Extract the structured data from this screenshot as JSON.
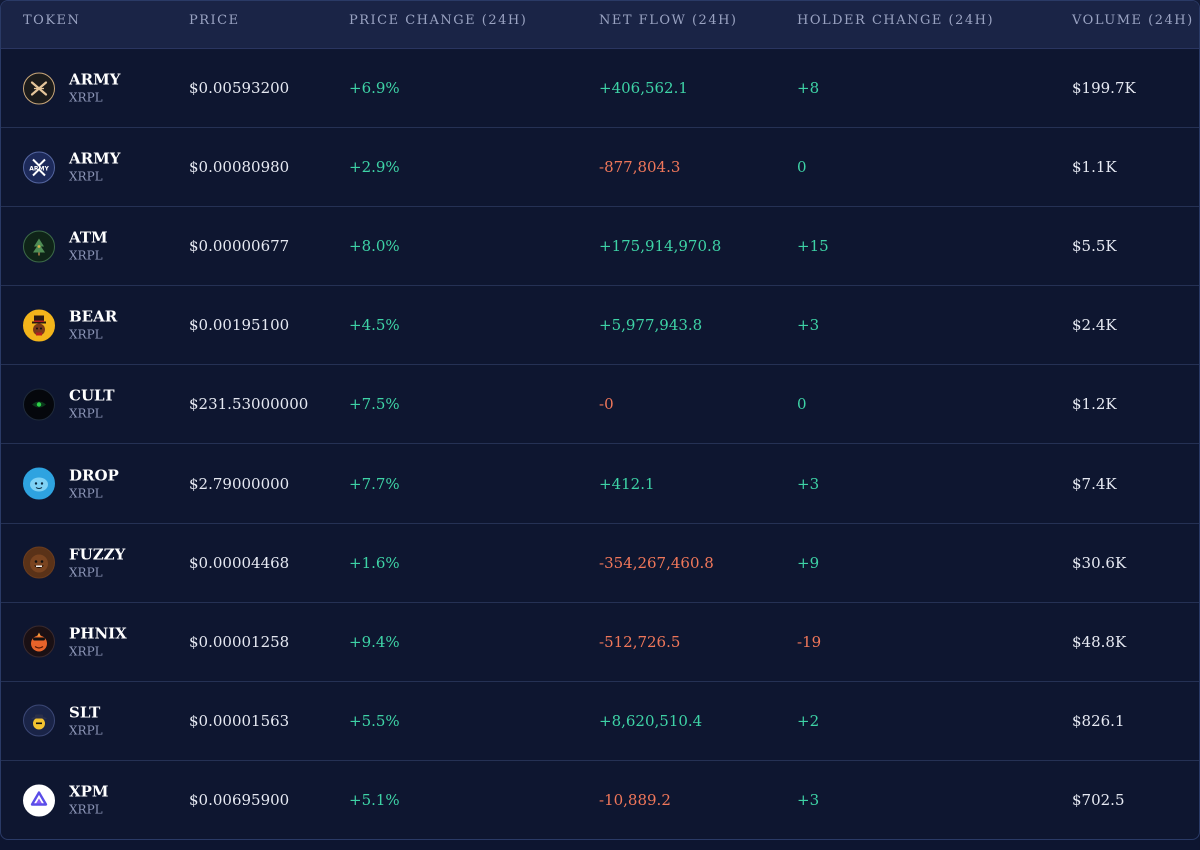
{
  "header": {
    "token": "TOKEN",
    "price": "PRICE",
    "change": "PRICE CHANGE (24H)",
    "flow": "NET FLOW (24H)",
    "holder": "HOLDER CHANGE (24H)",
    "volume": "VOLUME (24H)"
  },
  "colors": {
    "positive": "#3ed3a6",
    "negative": "#f0775a",
    "background": "#0e1630"
  },
  "rows": [
    {
      "symbol": "ARMY",
      "chain": "XRPL",
      "icon": "army-crossed-swords-icon",
      "price": "$0.00593200",
      "change": "+6.9%",
      "flow": "+406,562.1",
      "holder": "+8",
      "volume": "$199.7K"
    },
    {
      "symbol": "ARMY",
      "chain": "XRPL",
      "icon": "army-xrp-icon",
      "price": "$0.00080980",
      "change": "+2.9%",
      "flow": "-877,804.3",
      "holder": "0",
      "volume": "$1.1K"
    },
    {
      "symbol": "ATM",
      "chain": "XRPL",
      "icon": "atm-tree-icon",
      "price": "$0.00000677",
      "change": "+8.0%",
      "flow": "+175,914,970.8",
      "holder": "+15",
      "volume": "$5.5K"
    },
    {
      "symbol": "BEAR",
      "chain": "XRPL",
      "icon": "bear-tophat-icon",
      "price": "$0.00195100",
      "change": "+4.5%",
      "flow": "+5,977,943.8",
      "holder": "+3",
      "volume": "$2.4K"
    },
    {
      "symbol": "CULT",
      "chain": "XRPL",
      "icon": "cult-eye-icon",
      "price": "$231.53000000",
      "change": "+7.5%",
      "flow": "-0",
      "holder": "0",
      "volume": "$1.2K"
    },
    {
      "symbol": "DROP",
      "chain": "XRPL",
      "icon": "drop-blob-icon",
      "price": "$2.79000000",
      "change": "+7.7%",
      "flow": "+412.1",
      "holder": "+3",
      "volume": "$7.4K"
    },
    {
      "symbol": "FUZZY",
      "chain": "XRPL",
      "icon": "fuzzy-bear-icon",
      "price": "$0.00004468",
      "change": "+1.6%",
      "flow": "-354,267,460.8",
      "holder": "+9",
      "volume": "$30.6K"
    },
    {
      "symbol": "PHNIX",
      "chain": "XRPL",
      "icon": "phnix-bird-icon",
      "price": "$0.00001258",
      "change": "+9.4%",
      "flow": "-512,726.5",
      "holder": "-19",
      "volume": "$48.8K"
    },
    {
      "symbol": "SLT",
      "chain": "XRPL",
      "icon": "slt-hat-icon",
      "price": "$0.00001563",
      "change": "+5.5%",
      "flow": "+8,620,510.4",
      "holder": "+2",
      "volume": "$826.1"
    },
    {
      "symbol": "XPM",
      "chain": "XRPL",
      "icon": "xpm-logo-icon",
      "price": "$0.00695900",
      "change": "+5.1%",
      "flow": "-10,889.2",
      "holder": "+3",
      "volume": "$702.5"
    }
  ]
}
